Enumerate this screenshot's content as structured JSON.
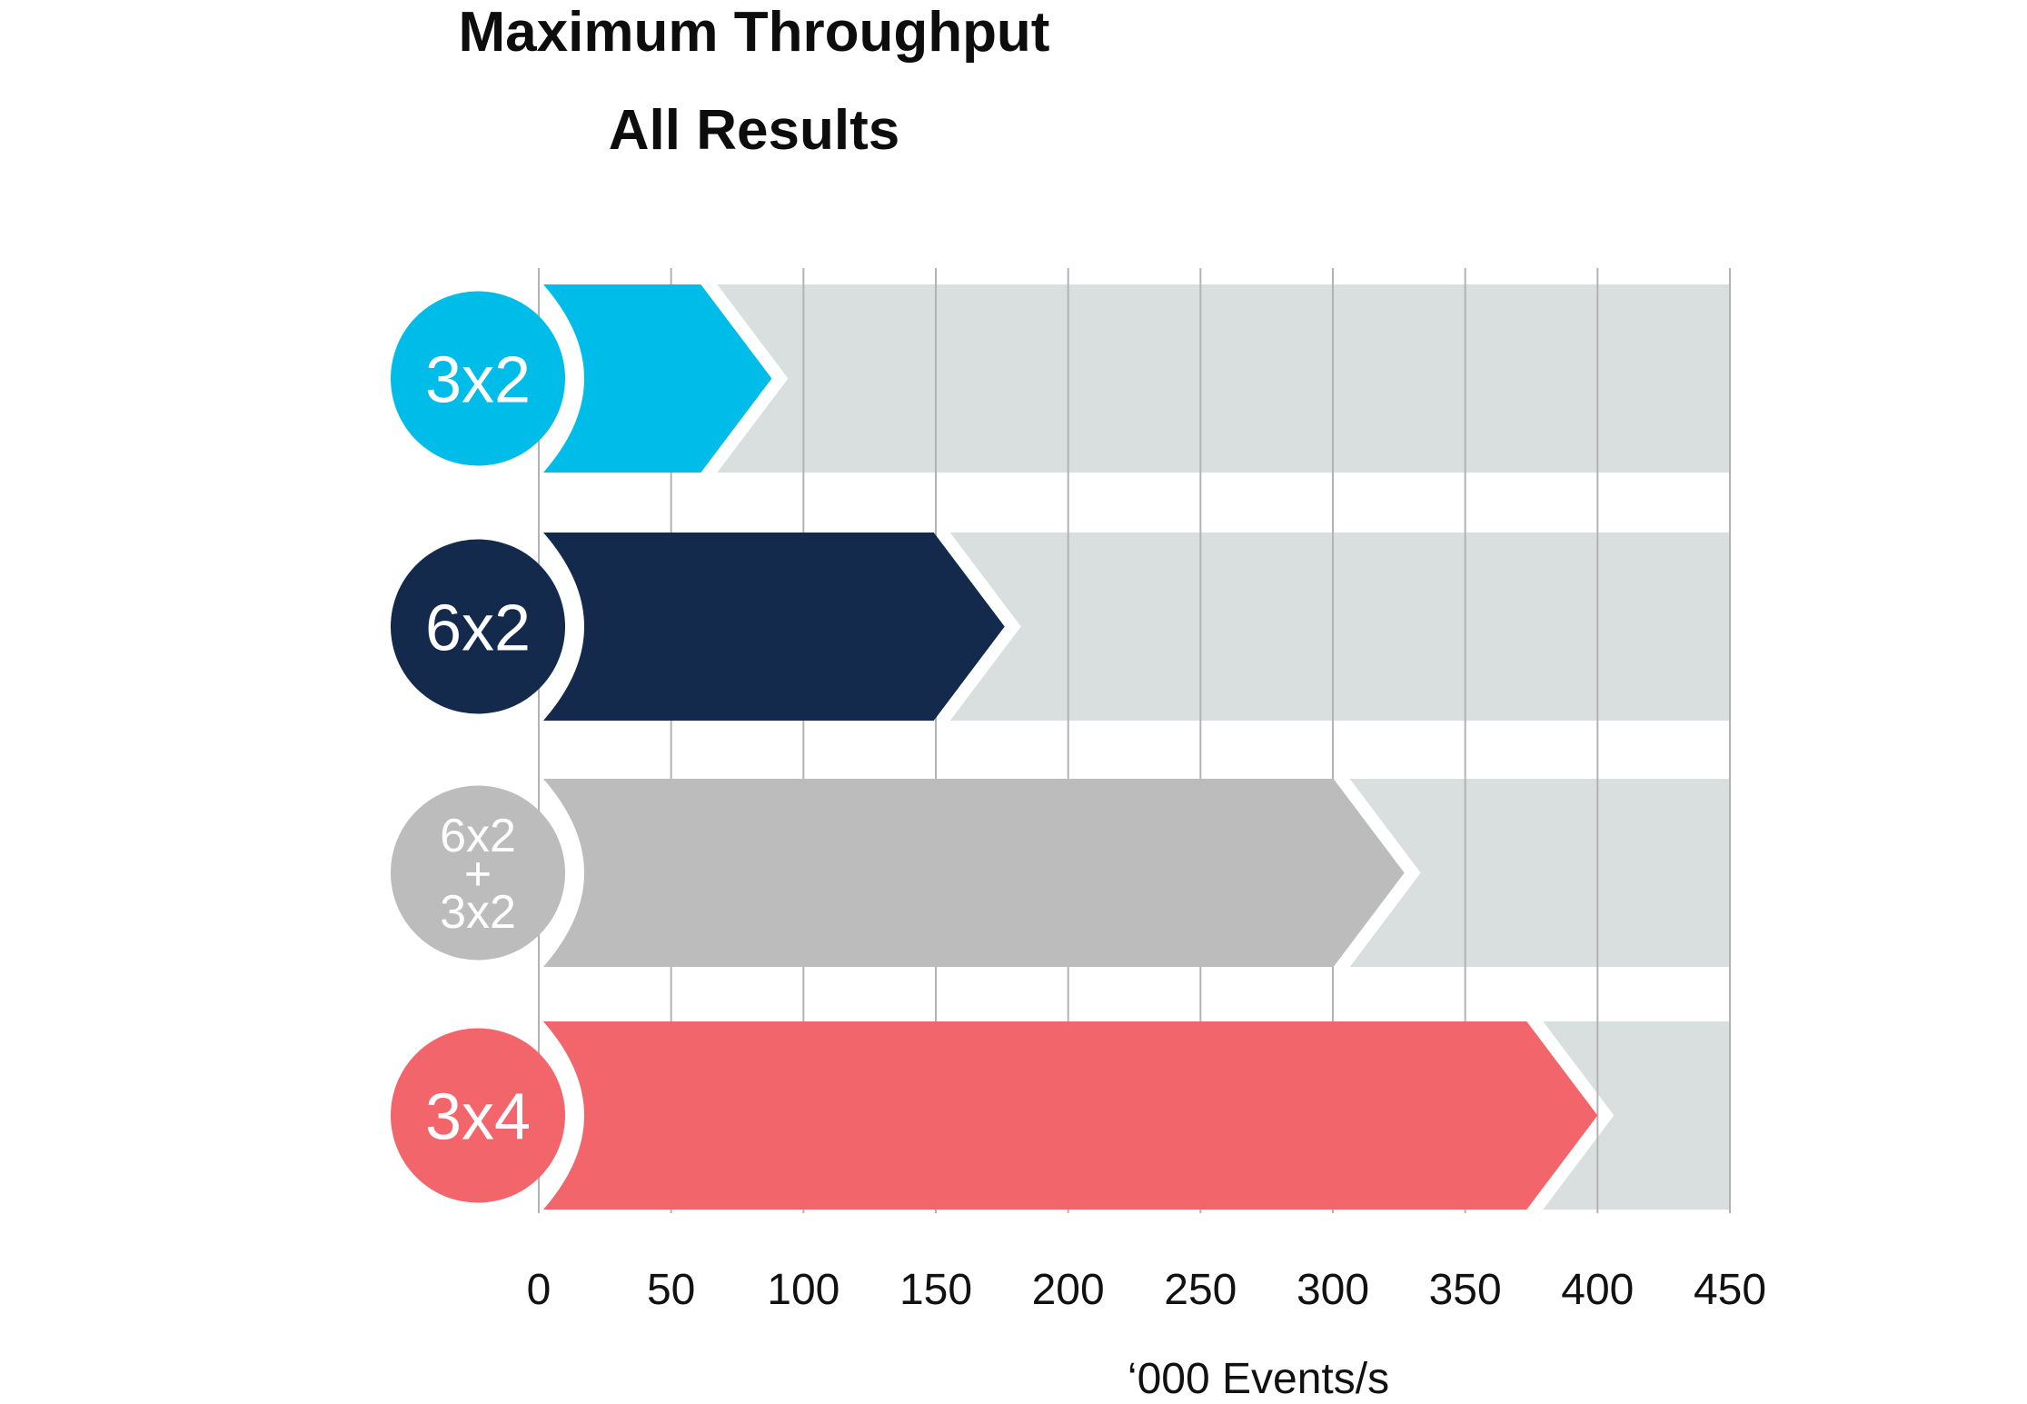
{
  "chart_data": {
    "type": "bar",
    "orientation": "horizontal",
    "title": "Maximum Throughput",
    "subtitle": "All Results",
    "xlabel": "‘000 Events/s",
    "ylabel": "",
    "xlim": [
      0,
      450
    ],
    "xticks": [
      "0",
      "50",
      "100",
      "150",
      "200",
      "250",
      "300",
      "350",
      "400",
      "450"
    ],
    "grid": "vertical",
    "categories": [
      {
        "label": "3x2",
        "lines": [
          "3x2"
        ],
        "value": 88,
        "color": "#00bce8"
      },
      {
        "label": "6x2",
        "lines": [
          "6x2"
        ],
        "value": 176,
        "color": "#132a4d"
      },
      {
        "label": "6x2 + 3x2",
        "lines": [
          "6x2",
          "+",
          "3x2"
        ],
        "value": 327,
        "color": "#bcbcbc"
      },
      {
        "label": "3x4",
        "lines": [
          "3x4"
        ],
        "value": 400,
        "color": "#f2656a"
      }
    ],
    "track_color": "#d9dedf"
  }
}
